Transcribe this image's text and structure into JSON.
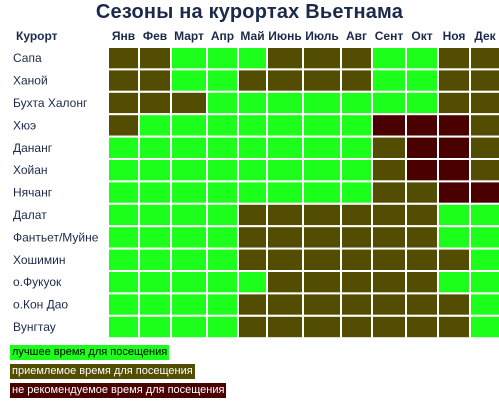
{
  "title": "Сезоны на курортах Вьетнама",
  "colors": {
    "best": "#1cff1a",
    "ok": "#524d00",
    "bad": "#4b0000",
    "grid_bg": "#ffffff"
  },
  "chart_data": {
    "type": "heatmap",
    "title": "Сезоны на курортах Вьетнама",
    "row_header": "Курорт",
    "columns": [
      "Янв",
      "Фев",
      "Март",
      "Апр",
      "Май",
      "Июнь",
      "Июль",
      "Авг",
      "Сент",
      "Окт",
      "Ноя",
      "Дек"
    ],
    "rows": [
      {
        "name": "Сапа",
        "values": [
          "ok",
          "ok",
          "best",
          "best",
          "best",
          "ok",
          "ok",
          "ok",
          "best",
          "best",
          "ok",
          "ok"
        ]
      },
      {
        "name": "Ханой",
        "values": [
          "ok",
          "ok",
          "best",
          "best",
          "ok",
          "ok",
          "ok",
          "ok",
          "best",
          "best",
          "ok",
          "ok"
        ]
      },
      {
        "name": "Бухта Халонг",
        "values": [
          "ok",
          "ok",
          "ok",
          "best",
          "best",
          "best",
          "best",
          "best",
          "best",
          "best",
          "ok",
          "ok"
        ]
      },
      {
        "name": "Хюэ",
        "values": [
          "ok",
          "best",
          "best",
          "best",
          "best",
          "best",
          "best",
          "best",
          "bad",
          "bad",
          "bad",
          "ok"
        ]
      },
      {
        "name": "Дананг",
        "values": [
          "best",
          "best",
          "best",
          "best",
          "best",
          "best",
          "best",
          "best",
          "ok",
          "bad",
          "bad",
          "ok"
        ]
      },
      {
        "name": "Хойан",
        "values": [
          "best",
          "best",
          "best",
          "best",
          "best",
          "best",
          "best",
          "best",
          "ok",
          "bad",
          "bad",
          "ok"
        ]
      },
      {
        "name": "Нячанг",
        "values": [
          "best",
          "best",
          "best",
          "best",
          "best",
          "best",
          "best",
          "best",
          "ok",
          "ok",
          "bad",
          "bad"
        ]
      },
      {
        "name": "Далат",
        "values": [
          "best",
          "best",
          "best",
          "best",
          "ok",
          "ok",
          "ok",
          "ok",
          "ok",
          "ok",
          "best",
          "best"
        ]
      },
      {
        "name": "Фантьет/Муйне",
        "values": [
          "best",
          "best",
          "best",
          "best",
          "ok",
          "ok",
          "ok",
          "ok",
          "ok",
          "ok",
          "best",
          "best"
        ]
      },
      {
        "name": "Хошимин",
        "values": [
          "best",
          "best",
          "best",
          "best",
          "ok",
          "ok",
          "ok",
          "ok",
          "ok",
          "ok",
          "ok",
          "best"
        ]
      },
      {
        "name": "о.Фукуок",
        "values": [
          "best",
          "best",
          "best",
          "best",
          "best",
          "ok",
          "ok",
          "ok",
          "ok",
          "ok",
          "best",
          "best"
        ]
      },
      {
        "name": "о.Кон Дао",
        "values": [
          "best",
          "best",
          "best",
          "best",
          "ok",
          "ok",
          "ok",
          "ok",
          "ok",
          "ok",
          "ok",
          "best"
        ]
      },
      {
        "name": "Вунгтау",
        "values": [
          "best",
          "best",
          "best",
          "best",
          "ok",
          "ok",
          "ok",
          "ok",
          "ok",
          "ok",
          "ok",
          "best"
        ]
      }
    ],
    "legend": [
      {
        "key": "best",
        "label": "лучшее время для посещения"
      },
      {
        "key": "ok",
        "label": "приемлемое время для посещения"
      },
      {
        "key": "bad",
        "label": "не рекомендуемое время для посещения"
      }
    ]
  }
}
